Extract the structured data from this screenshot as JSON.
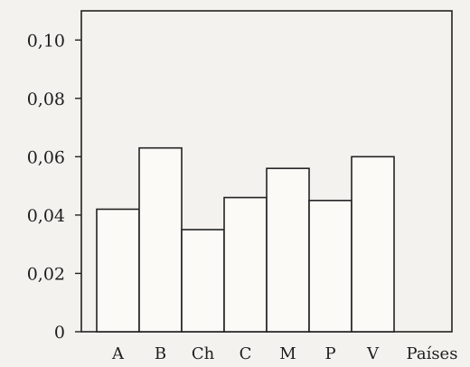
{
  "chart_data": {
    "type": "bar",
    "categories": [
      "A",
      "B",
      "Ch",
      "C",
      "M",
      "P",
      "V"
    ],
    "values": [
      0.042,
      0.063,
      0.035,
      0.046,
      0.056,
      0.045,
      0.06
    ],
    "ylim": [
      0,
      0.11
    ],
    "yticks": [
      0,
      0.02,
      0.04,
      0.06,
      0.08,
      0.1
    ],
    "ytick_labels": [
      "0",
      "0,02",
      "0,04",
      "0,06",
      "0,08",
      "0,10"
    ],
    "xlabel": "Países",
    "ylabel": "",
    "title": "",
    "grid": false,
    "legend": "none"
  }
}
